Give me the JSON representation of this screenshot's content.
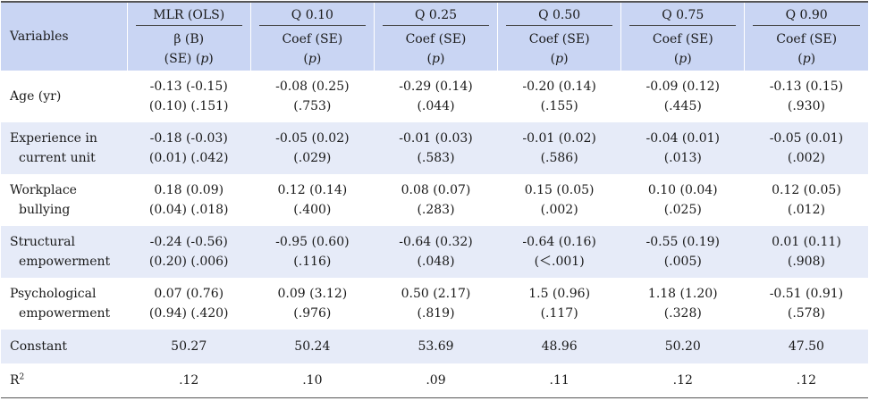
{
  "header": {
    "variables": "Variables",
    "groups": [
      "MLR (OLS)",
      "Q 0.10",
      "Q 0.25",
      "Q 0.50",
      "Q 0.75",
      "Q 0.90"
    ],
    "sub": [
      {
        "line1": "β (B)",
        "line2a": "(SE) (",
        "line2b": "p",
        "line2c": ")"
      },
      {
        "line1": "Coef (SE)",
        "line2a": "(",
        "line2b": "p",
        "line2c": ")"
      },
      {
        "line1": "Coef (SE)",
        "line2a": "(",
        "line2b": "p",
        "line2c": ")"
      },
      {
        "line1": "Coef (SE)",
        "line2a": "(",
        "line2b": "p",
        "line2c": ")"
      },
      {
        "line1": "Coef (SE)",
        "line2a": "(",
        "line2b": "p",
        "line2c": ")"
      },
      {
        "line1": "Coef (SE)",
        "line2a": "(",
        "line2b": "p",
        "line2c": ")"
      }
    ]
  },
  "rows": [
    {
      "label1": "Age (yr)",
      "label2": "",
      "cells": [
        [
          "-0.13 (-0.15)",
          "(0.10) (.151)"
        ],
        [
          "-0.08 (0.25)",
          "(.753)"
        ],
        [
          "-0.29 (0.14)",
          "(.044)"
        ],
        [
          "-0.20 (0.14)",
          "(.155)"
        ],
        [
          "-0.09 (0.12)",
          "(.445)"
        ],
        [
          "-0.13 (0.15)",
          "(.930)"
        ]
      ]
    },
    {
      "label1": "Experience in",
      "label2": "current unit",
      "cells": [
        [
          "-0.18 (-0.03)",
          "(0.01) (.042)"
        ],
        [
          "-0.05 (0.02)",
          "(.029)"
        ],
        [
          "-0.01 (0.03)",
          "(.583)"
        ],
        [
          "-0.01 (0.02)",
          "(.586)"
        ],
        [
          "-0.04 (0.01)",
          "(.013)"
        ],
        [
          "-0.05 (0.01)",
          "(.002)"
        ]
      ]
    },
    {
      "label1": "Workplace",
      "label2": "bullying",
      "cells": [
        [
          "0.18 (0.09)",
          "(0.04) (.018)"
        ],
        [
          "0.12 (0.14)",
          "(.400)"
        ],
        [
          "0.08 (0.07)",
          "(.283)"
        ],
        [
          "0.15 (0.05)",
          "(.002)"
        ],
        [
          "0.10 (0.04)",
          "(.025)"
        ],
        [
          "0.12 (0.05)",
          "(.012)"
        ]
      ]
    },
    {
      "label1": "Structural",
      "label2": "empowerment",
      "cells": [
        [
          "-0.24 (-0.56)",
          "(0.20) (.006)"
        ],
        [
          "-0.95 (0.60)",
          "(.116)"
        ],
        [
          "-0.64 (0.32)",
          "(.048)"
        ],
        [
          "-0.64 (0.16)",
          "(＜.001)"
        ],
        [
          "-0.55 (0.19)",
          "(.005)"
        ],
        [
          "0.01 (0.11)",
          "(.908)"
        ]
      ]
    },
    {
      "label1": "Psychological",
      "label2": "empowerment",
      "cells": [
        [
          "0.07 (0.76)",
          "(0.94) (.420)"
        ],
        [
          "0.09 (3.12)",
          "(.976)"
        ],
        [
          "0.50 (2.17)",
          "(.819)"
        ],
        [
          "1.5 (0.96)",
          "(.117)"
        ],
        [
          "1.18 (1.20)",
          "(.328)"
        ],
        [
          "-0.51 (0.91)",
          "(.578)"
        ]
      ]
    }
  ],
  "constant": {
    "label": "Constant",
    "values": [
      "50.27",
      "50.24",
      "53.69",
      "48.96",
      "50.20",
      "47.50"
    ]
  },
  "r2": {
    "label": "R",
    "sup": "2",
    "values": [
      ".12",
      ".10",
      ".09",
      ".11",
      ".12",
      ".12"
    ]
  }
}
